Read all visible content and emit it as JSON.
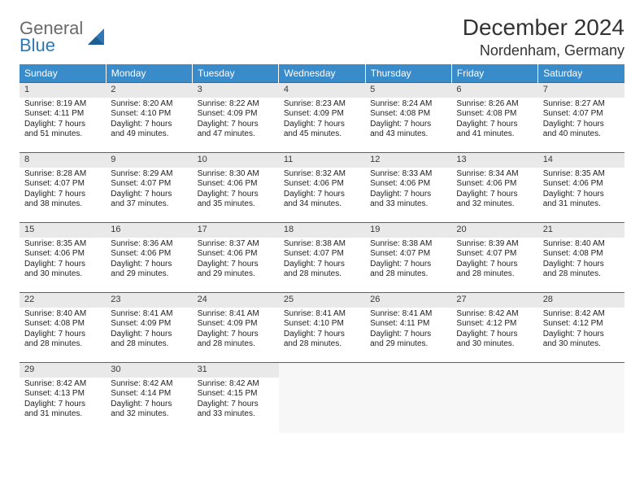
{
  "logo": {
    "line1": "General",
    "line2": "Blue"
  },
  "title": "December 2024",
  "subtitle": "Nordenham, Germany",
  "colors": {
    "header_bg": "#3a8bc9",
    "header_text": "#ffffff",
    "daynum_bg": "#e9e9e9",
    "row_border": "#2f6ea3",
    "logo_gray": "#6a6a6a",
    "logo_blue": "#2f78b5"
  },
  "typography": {
    "title_fontsize": 28,
    "subtitle_fontsize": 18,
    "header_fontsize": 12,
    "daynum_fontsize": 11,
    "body_fontsize": 10
  },
  "day_labels": [
    "Sunday",
    "Monday",
    "Tuesday",
    "Wednesday",
    "Thursday",
    "Friday",
    "Saturday"
  ],
  "weeks": [
    [
      {
        "n": "1",
        "sr": "Sunrise: 8:19 AM",
        "ss": "Sunset: 4:11 PM",
        "d1": "Daylight: 7 hours",
        "d2": "and 51 minutes."
      },
      {
        "n": "2",
        "sr": "Sunrise: 8:20 AM",
        "ss": "Sunset: 4:10 PM",
        "d1": "Daylight: 7 hours",
        "d2": "and 49 minutes."
      },
      {
        "n": "3",
        "sr": "Sunrise: 8:22 AM",
        "ss": "Sunset: 4:09 PM",
        "d1": "Daylight: 7 hours",
        "d2": "and 47 minutes."
      },
      {
        "n": "4",
        "sr": "Sunrise: 8:23 AM",
        "ss": "Sunset: 4:09 PM",
        "d1": "Daylight: 7 hours",
        "d2": "and 45 minutes."
      },
      {
        "n": "5",
        "sr": "Sunrise: 8:24 AM",
        "ss": "Sunset: 4:08 PM",
        "d1": "Daylight: 7 hours",
        "d2": "and 43 minutes."
      },
      {
        "n": "6",
        "sr": "Sunrise: 8:26 AM",
        "ss": "Sunset: 4:08 PM",
        "d1": "Daylight: 7 hours",
        "d2": "and 41 minutes."
      },
      {
        "n": "7",
        "sr": "Sunrise: 8:27 AM",
        "ss": "Sunset: 4:07 PM",
        "d1": "Daylight: 7 hours",
        "d2": "and 40 minutes."
      }
    ],
    [
      {
        "n": "8",
        "sr": "Sunrise: 8:28 AM",
        "ss": "Sunset: 4:07 PM",
        "d1": "Daylight: 7 hours",
        "d2": "and 38 minutes."
      },
      {
        "n": "9",
        "sr": "Sunrise: 8:29 AM",
        "ss": "Sunset: 4:07 PM",
        "d1": "Daylight: 7 hours",
        "d2": "and 37 minutes."
      },
      {
        "n": "10",
        "sr": "Sunrise: 8:30 AM",
        "ss": "Sunset: 4:06 PM",
        "d1": "Daylight: 7 hours",
        "d2": "and 35 minutes."
      },
      {
        "n": "11",
        "sr": "Sunrise: 8:32 AM",
        "ss": "Sunset: 4:06 PM",
        "d1": "Daylight: 7 hours",
        "d2": "and 34 minutes."
      },
      {
        "n": "12",
        "sr": "Sunrise: 8:33 AM",
        "ss": "Sunset: 4:06 PM",
        "d1": "Daylight: 7 hours",
        "d2": "and 33 minutes."
      },
      {
        "n": "13",
        "sr": "Sunrise: 8:34 AM",
        "ss": "Sunset: 4:06 PM",
        "d1": "Daylight: 7 hours",
        "d2": "and 32 minutes."
      },
      {
        "n": "14",
        "sr": "Sunrise: 8:35 AM",
        "ss": "Sunset: 4:06 PM",
        "d1": "Daylight: 7 hours",
        "d2": "and 31 minutes."
      }
    ],
    [
      {
        "n": "15",
        "sr": "Sunrise: 8:35 AM",
        "ss": "Sunset: 4:06 PM",
        "d1": "Daylight: 7 hours",
        "d2": "and 30 minutes."
      },
      {
        "n": "16",
        "sr": "Sunrise: 8:36 AM",
        "ss": "Sunset: 4:06 PM",
        "d1": "Daylight: 7 hours",
        "d2": "and 29 minutes."
      },
      {
        "n": "17",
        "sr": "Sunrise: 8:37 AM",
        "ss": "Sunset: 4:06 PM",
        "d1": "Daylight: 7 hours",
        "d2": "and 29 minutes."
      },
      {
        "n": "18",
        "sr": "Sunrise: 8:38 AM",
        "ss": "Sunset: 4:07 PM",
        "d1": "Daylight: 7 hours",
        "d2": "and 28 minutes."
      },
      {
        "n": "19",
        "sr": "Sunrise: 8:38 AM",
        "ss": "Sunset: 4:07 PM",
        "d1": "Daylight: 7 hours",
        "d2": "and 28 minutes."
      },
      {
        "n": "20",
        "sr": "Sunrise: 8:39 AM",
        "ss": "Sunset: 4:07 PM",
        "d1": "Daylight: 7 hours",
        "d2": "and 28 minutes."
      },
      {
        "n": "21",
        "sr": "Sunrise: 8:40 AM",
        "ss": "Sunset: 4:08 PM",
        "d1": "Daylight: 7 hours",
        "d2": "and 28 minutes."
      }
    ],
    [
      {
        "n": "22",
        "sr": "Sunrise: 8:40 AM",
        "ss": "Sunset: 4:08 PM",
        "d1": "Daylight: 7 hours",
        "d2": "and 28 minutes."
      },
      {
        "n": "23",
        "sr": "Sunrise: 8:41 AM",
        "ss": "Sunset: 4:09 PM",
        "d1": "Daylight: 7 hours",
        "d2": "and 28 minutes."
      },
      {
        "n": "24",
        "sr": "Sunrise: 8:41 AM",
        "ss": "Sunset: 4:09 PM",
        "d1": "Daylight: 7 hours",
        "d2": "and 28 minutes."
      },
      {
        "n": "25",
        "sr": "Sunrise: 8:41 AM",
        "ss": "Sunset: 4:10 PM",
        "d1": "Daylight: 7 hours",
        "d2": "and 28 minutes."
      },
      {
        "n": "26",
        "sr": "Sunrise: 8:41 AM",
        "ss": "Sunset: 4:11 PM",
        "d1": "Daylight: 7 hours",
        "d2": "and 29 minutes."
      },
      {
        "n": "27",
        "sr": "Sunrise: 8:42 AM",
        "ss": "Sunset: 4:12 PM",
        "d1": "Daylight: 7 hours",
        "d2": "and 30 minutes."
      },
      {
        "n": "28",
        "sr": "Sunrise: 8:42 AM",
        "ss": "Sunset: 4:12 PM",
        "d1": "Daylight: 7 hours",
        "d2": "and 30 minutes."
      }
    ],
    [
      {
        "n": "29",
        "sr": "Sunrise: 8:42 AM",
        "ss": "Sunset: 4:13 PM",
        "d1": "Daylight: 7 hours",
        "d2": "and 31 minutes."
      },
      {
        "n": "30",
        "sr": "Sunrise: 8:42 AM",
        "ss": "Sunset: 4:14 PM",
        "d1": "Daylight: 7 hours",
        "d2": "and 32 minutes."
      },
      {
        "n": "31",
        "sr": "Sunrise: 8:42 AM",
        "ss": "Sunset: 4:15 PM",
        "d1": "Daylight: 7 hours",
        "d2": "and 33 minutes."
      },
      {
        "empty": true
      },
      {
        "empty": true
      },
      {
        "empty": true
      },
      {
        "empty": true
      }
    ]
  ]
}
